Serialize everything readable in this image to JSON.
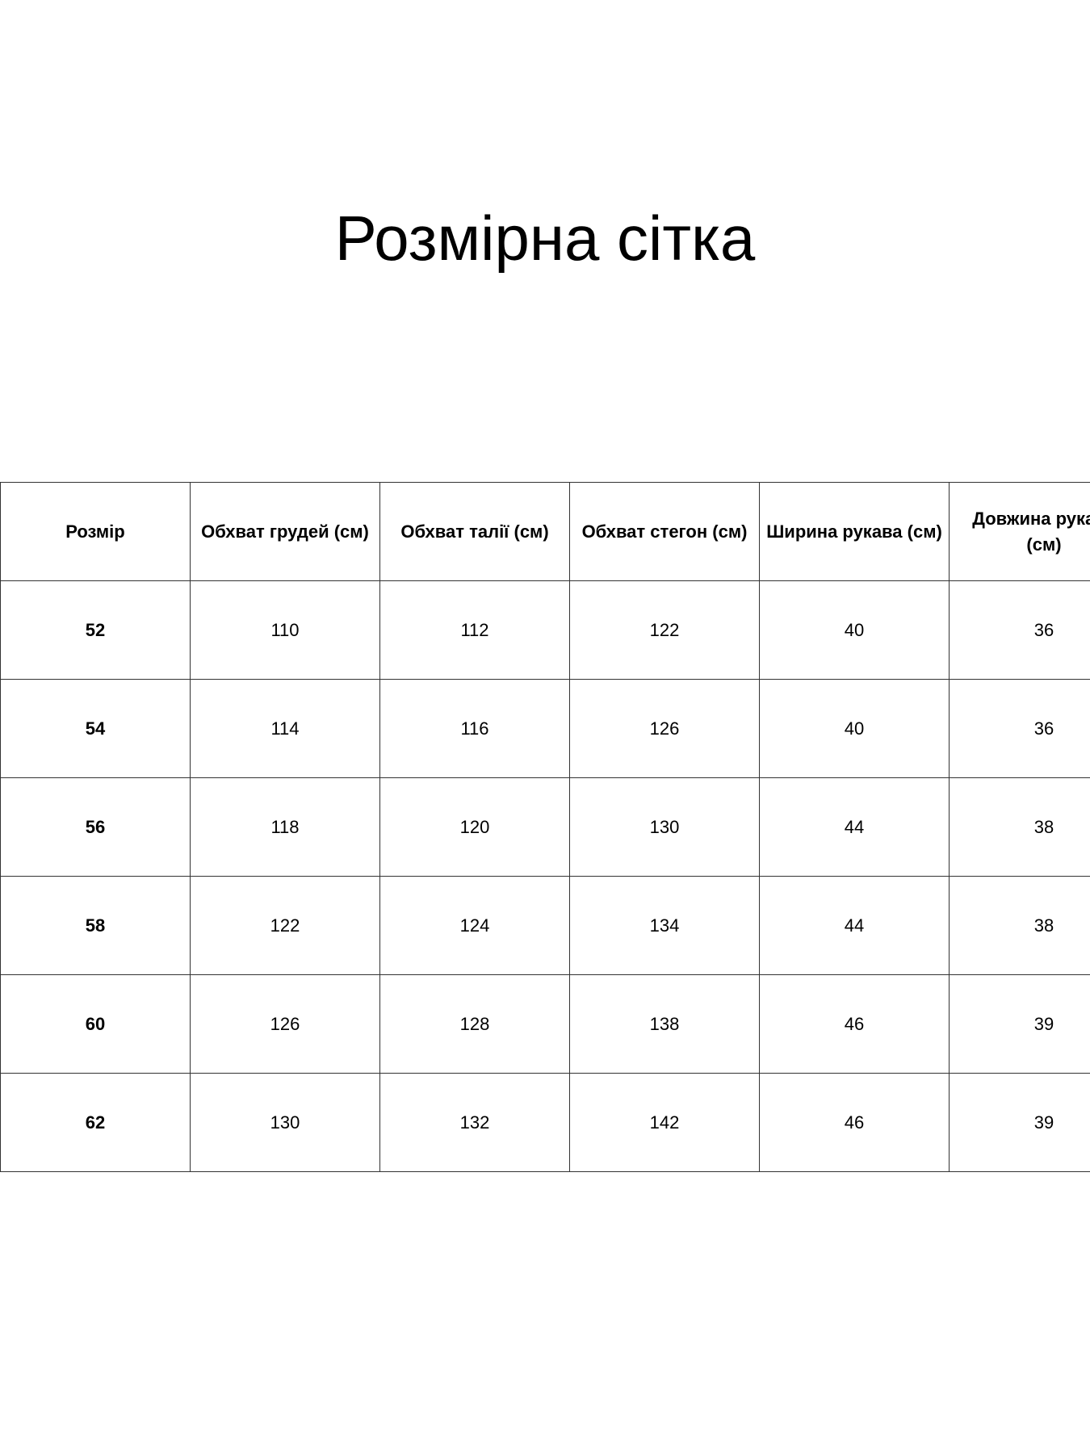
{
  "title": "Розмірна сітка",
  "table": {
    "headers": [
      "Розмір",
      "Обхват грудей (см)",
      "Обхват талії (см)",
      "Обхват стегон (см)",
      "Ширина рукава (см)",
      "Довжина рукава (см)"
    ],
    "rows": [
      [
        "52",
        "110",
        "112",
        "122",
        "40",
        "36"
      ],
      [
        "54",
        "114",
        "116",
        "126",
        "40",
        "36"
      ],
      [
        "56",
        "118",
        "120",
        "130",
        "44",
        "38"
      ],
      [
        "58",
        "122",
        "124",
        "134",
        "44",
        "38"
      ],
      [
        "60",
        "126",
        "128",
        "138",
        "46",
        "39"
      ],
      [
        "62",
        "130",
        "132",
        "142",
        "46",
        "39"
      ]
    ]
  }
}
